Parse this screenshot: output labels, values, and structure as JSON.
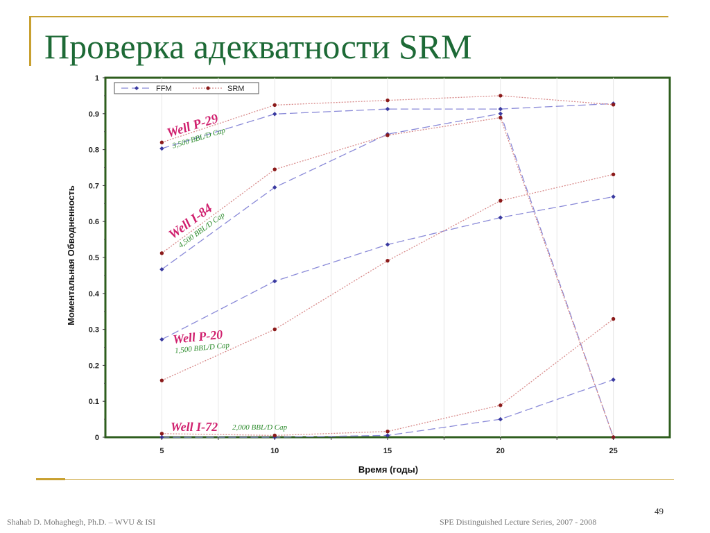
{
  "slide": {
    "title": "Проверка адекватности SRM",
    "page_number": "49",
    "footer_left": "Shahab D. Mohaghegh, Ph.D. – WVU & ISI",
    "footer_right": "SPE Distinguished Lecture Series, 2007 - 2008"
  },
  "colors": {
    "ffm": "#3a3aa0",
    "ffm_line": "#8a8ad8",
    "srm": "#8b1a1a",
    "srm_line": "#d88a8a",
    "frame": "#2e5e1e",
    "well_name": "#d0206e",
    "well_cap": "#2a8a2a",
    "accent": "#c8a030",
    "title": "#1d6a36"
  },
  "chart_data": {
    "type": "line",
    "xlabel": "Время (годы)",
    "ylabel": "Моментальная Обводненность",
    "x_ticks": [
      "5",
      "10",
      "15",
      "20",
      "25"
    ],
    "y_ticks": [
      "0",
      "0.1",
      "0.2",
      "0.3",
      "0.4",
      "0.5",
      "0.6",
      "0.7",
      "0.8",
      "0.9",
      "1"
    ],
    "xlim": [
      2.5,
      27.5
    ],
    "ylim": [
      0,
      1
    ],
    "legend": [
      "FFM",
      "SRM"
    ],
    "legend_position": "top-left",
    "x": [
      5,
      10,
      15,
      20,
      25
    ],
    "series": [
      {
        "name": "FFM",
        "well": "Well P-29",
        "values": [
          0.803,
          0.899,
          0.913,
          0.913,
          0.928
        ]
      },
      {
        "name": "SRM",
        "well": "Well P-29",
        "values": [
          0.82,
          0.924,
          0.937,
          0.95,
          0.925
        ]
      },
      {
        "name": "FFM",
        "well": "Well I-84",
        "values": [
          0.467,
          0.695,
          0.843,
          0.9,
          0.0
        ]
      },
      {
        "name": "SRM",
        "well": "Well I-84",
        "values": [
          0.512,
          0.745,
          0.84,
          0.889,
          0.0
        ]
      },
      {
        "name": "FFM",
        "well": "Well P-20",
        "values": [
          0.272,
          0.434,
          0.536,
          0.611,
          0.669
        ]
      },
      {
        "name": "SRM",
        "well": "Well P-20",
        "values": [
          0.158,
          0.3,
          0.491,
          0.658,
          0.731
        ]
      },
      {
        "name": "FFM",
        "well": "Well I-72",
        "values": [
          0.0,
          0.0,
          0.005,
          0.05,
          0.16
        ]
      },
      {
        "name": "SRM",
        "well": "Well I-72",
        "values": [
          0.01,
          0.005,
          0.016,
          0.089,
          0.329
        ]
      }
    ],
    "annotations": [
      {
        "name": "Well P-29",
        "cap": "3,500 BBL/D Cap"
      },
      {
        "name": "Well I-84",
        "cap": "4,500 BBL/D Cap"
      },
      {
        "name": "Well P-20",
        "cap": "1,500 BBL/D Cap"
      },
      {
        "name": "Well I-72",
        "cap": "2,000 BBL/D Cap"
      }
    ]
  }
}
